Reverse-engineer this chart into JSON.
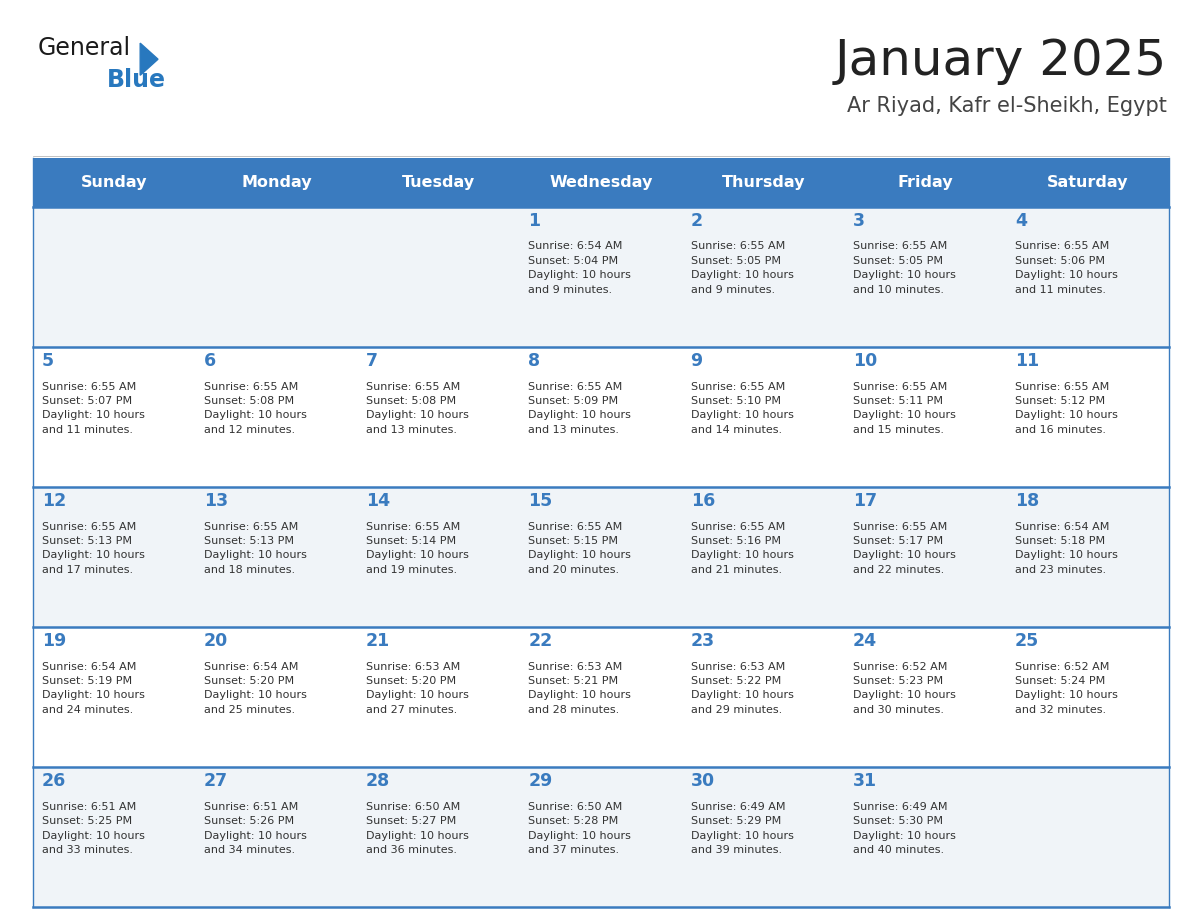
{
  "title": "January 2025",
  "subtitle": "Ar Riyad, Kafr el-Sheikh, Egypt",
  "header_bg": "#3a7bbf",
  "header_text_color": "#ffffff",
  "cell_bg_odd": "#f0f4f8",
  "cell_bg_even": "#ffffff",
  "day_names": [
    "Sunday",
    "Monday",
    "Tuesday",
    "Wednesday",
    "Thursday",
    "Friday",
    "Saturday"
  ],
  "title_color": "#222222",
  "subtitle_color": "#444444",
  "day_number_color": "#3a7bbf",
  "cell_text_color": "#333333",
  "divider_color": "#3a7bbf",
  "logo_general_color": "#1a1a1a",
  "logo_blue_color": "#2878be",
  "calendar_data": [
    [
      null,
      null,
      null,
      {
        "day": 1,
        "sunrise": "6:54 AM",
        "sunset": "5:04 PM",
        "dl_hours": 10,
        "dl_mins": 9
      },
      {
        "day": 2,
        "sunrise": "6:55 AM",
        "sunset": "5:05 PM",
        "dl_hours": 10,
        "dl_mins": 9
      },
      {
        "day": 3,
        "sunrise": "6:55 AM",
        "sunset": "5:05 PM",
        "dl_hours": 10,
        "dl_mins": 10
      },
      {
        "day": 4,
        "sunrise": "6:55 AM",
        "sunset": "5:06 PM",
        "dl_hours": 10,
        "dl_mins": 11
      }
    ],
    [
      {
        "day": 5,
        "sunrise": "6:55 AM",
        "sunset": "5:07 PM",
        "dl_hours": 10,
        "dl_mins": 11
      },
      {
        "day": 6,
        "sunrise": "6:55 AM",
        "sunset": "5:08 PM",
        "dl_hours": 10,
        "dl_mins": 12
      },
      {
        "day": 7,
        "sunrise": "6:55 AM",
        "sunset": "5:08 PM",
        "dl_hours": 10,
        "dl_mins": 13
      },
      {
        "day": 8,
        "sunrise": "6:55 AM",
        "sunset": "5:09 PM",
        "dl_hours": 10,
        "dl_mins": 13
      },
      {
        "day": 9,
        "sunrise": "6:55 AM",
        "sunset": "5:10 PM",
        "dl_hours": 10,
        "dl_mins": 14
      },
      {
        "day": 10,
        "sunrise": "6:55 AM",
        "sunset": "5:11 PM",
        "dl_hours": 10,
        "dl_mins": 15
      },
      {
        "day": 11,
        "sunrise": "6:55 AM",
        "sunset": "5:12 PM",
        "dl_hours": 10,
        "dl_mins": 16
      }
    ],
    [
      {
        "day": 12,
        "sunrise": "6:55 AM",
        "sunset": "5:13 PM",
        "dl_hours": 10,
        "dl_mins": 17
      },
      {
        "day": 13,
        "sunrise": "6:55 AM",
        "sunset": "5:13 PM",
        "dl_hours": 10,
        "dl_mins": 18
      },
      {
        "day": 14,
        "sunrise": "6:55 AM",
        "sunset": "5:14 PM",
        "dl_hours": 10,
        "dl_mins": 19
      },
      {
        "day": 15,
        "sunrise": "6:55 AM",
        "sunset": "5:15 PM",
        "dl_hours": 10,
        "dl_mins": 20
      },
      {
        "day": 16,
        "sunrise": "6:55 AM",
        "sunset": "5:16 PM",
        "dl_hours": 10,
        "dl_mins": 21
      },
      {
        "day": 17,
        "sunrise": "6:55 AM",
        "sunset": "5:17 PM",
        "dl_hours": 10,
        "dl_mins": 22
      },
      {
        "day": 18,
        "sunrise": "6:54 AM",
        "sunset": "5:18 PM",
        "dl_hours": 10,
        "dl_mins": 23
      }
    ],
    [
      {
        "day": 19,
        "sunrise": "6:54 AM",
        "sunset": "5:19 PM",
        "dl_hours": 10,
        "dl_mins": 24
      },
      {
        "day": 20,
        "sunrise": "6:54 AM",
        "sunset": "5:20 PM",
        "dl_hours": 10,
        "dl_mins": 25
      },
      {
        "day": 21,
        "sunrise": "6:53 AM",
        "sunset": "5:20 PM",
        "dl_hours": 10,
        "dl_mins": 27
      },
      {
        "day": 22,
        "sunrise": "6:53 AM",
        "sunset": "5:21 PM",
        "dl_hours": 10,
        "dl_mins": 28
      },
      {
        "day": 23,
        "sunrise": "6:53 AM",
        "sunset": "5:22 PM",
        "dl_hours": 10,
        "dl_mins": 29
      },
      {
        "day": 24,
        "sunrise": "6:52 AM",
        "sunset": "5:23 PM",
        "dl_hours": 10,
        "dl_mins": 30
      },
      {
        "day": 25,
        "sunrise": "6:52 AM",
        "sunset": "5:24 PM",
        "dl_hours": 10,
        "dl_mins": 32
      }
    ],
    [
      {
        "day": 26,
        "sunrise": "6:51 AM",
        "sunset": "5:25 PM",
        "dl_hours": 10,
        "dl_mins": 33
      },
      {
        "day": 27,
        "sunrise": "6:51 AM",
        "sunset": "5:26 PM",
        "dl_hours": 10,
        "dl_mins": 34
      },
      {
        "day": 28,
        "sunrise": "6:50 AM",
        "sunset": "5:27 PM",
        "dl_hours": 10,
        "dl_mins": 36
      },
      {
        "day": 29,
        "sunrise": "6:50 AM",
        "sunset": "5:28 PM",
        "dl_hours": 10,
        "dl_mins": 37
      },
      {
        "day": 30,
        "sunrise": "6:49 AM",
        "sunset": "5:29 PM",
        "dl_hours": 10,
        "dl_mins": 39
      },
      {
        "day": 31,
        "sunrise": "6:49 AM",
        "sunset": "5:30 PM",
        "dl_hours": 10,
        "dl_mins": 40
      },
      null
    ]
  ]
}
